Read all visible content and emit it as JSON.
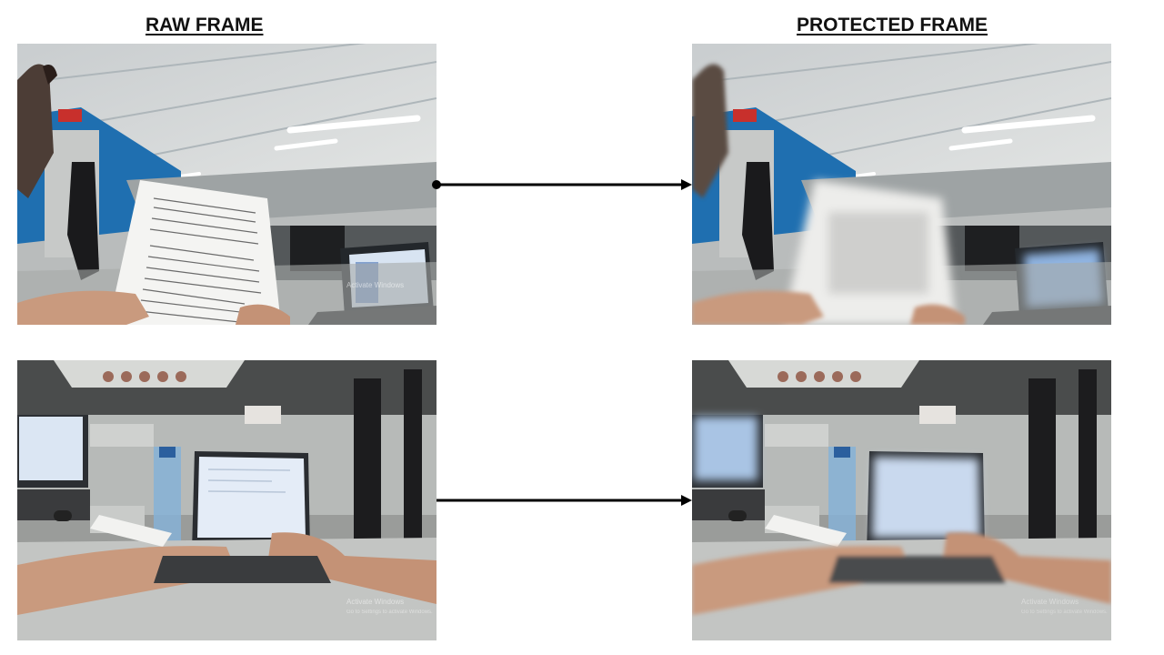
{
  "headings": {
    "raw": "RAW FRAME",
    "protected": "PROTECTED FRAME"
  },
  "watermark": {
    "line1": "Activate Windows",
    "line2": "Go to Settings to activate Windows."
  },
  "colors": {
    "arrow": "#000000",
    "ceiling": "#d9dcdc",
    "lights": "#ffffff",
    "blue_wall": "#1f6fb0",
    "desk": "#bfc2c0",
    "laptop_screen": "#dfe9f6",
    "skin": "#c99a7e"
  }
}
